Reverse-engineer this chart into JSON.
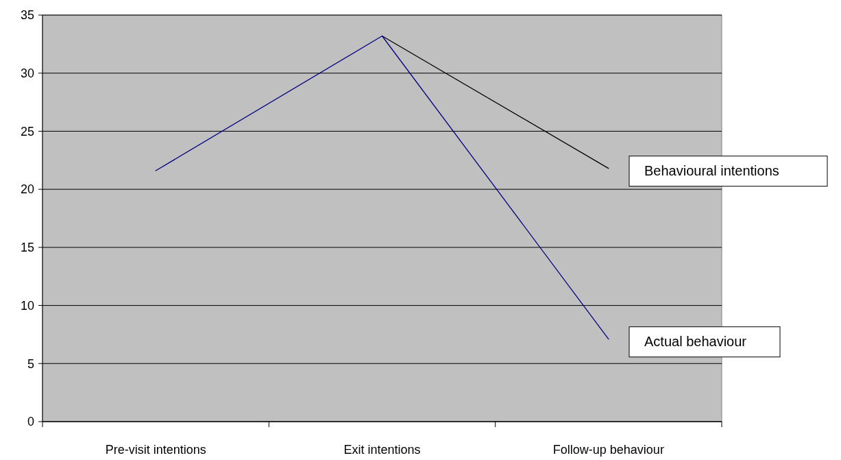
{
  "chart_data": {
    "type": "line",
    "categories": [
      "Pre-visit intentions",
      "Exit intentions",
      "Follow-up behaviour"
    ],
    "series": [
      {
        "name": "Behavioural intentions",
        "color": "#000000",
        "values": [
          null,
          33.2,
          21.8
        ]
      },
      {
        "name": "Actual behaviour",
        "color": "#000080",
        "values": [
          21.6,
          33.2,
          7.1
        ]
      }
    ],
    "ylim": [
      0,
      35
    ],
    "yticks": [
      0,
      5,
      10,
      15,
      20,
      25,
      30,
      35
    ],
    "grid": "y",
    "legend": false,
    "marker": "none",
    "line_style": "solid"
  }
}
